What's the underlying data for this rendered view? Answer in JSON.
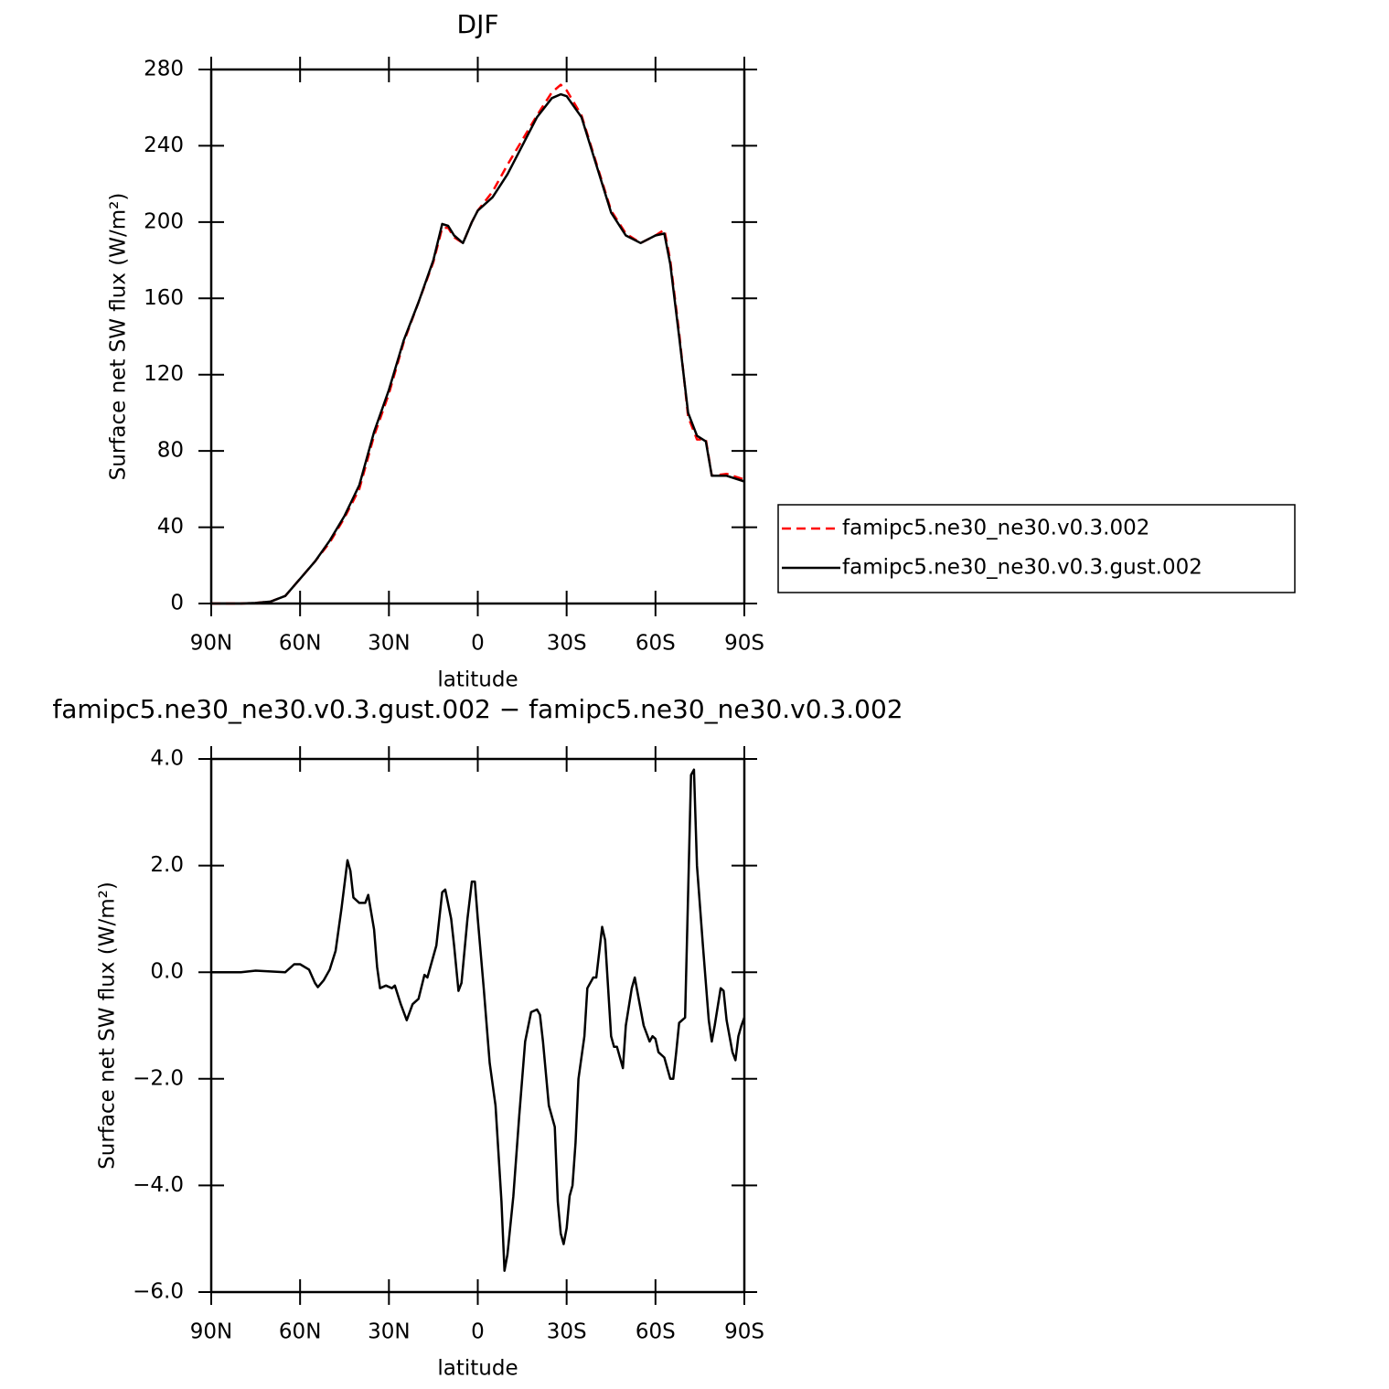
{
  "chart_data": [
    {
      "type": "line",
      "title": "DJF",
      "xlabel": "latitude",
      "ylabel": "Surface net SW flux (W/m²)",
      "x": [
        90,
        85,
        80,
        75,
        70,
        65,
        60,
        55,
        50,
        45,
        40,
        35,
        30,
        25,
        20,
        15,
        12,
        10,
        8,
        5,
        2,
        0,
        -5,
        -10,
        -15,
        -20,
        -25,
        -28,
        -30,
        -35,
        -40,
        -45,
        -50,
        -55,
        -60,
        -63,
        -65,
        -68,
        -71,
        -74,
        -77,
        -79,
        -84,
        -90
      ],
      "series": [
        {
          "name": "famipc5.ne30_ne30.v0.3.002",
          "color": "#ff0000",
          "dash": true,
          "values": [
            0,
            0,
            0,
            0.3,
            1,
            4,
            13,
            22,
            32,
            45,
            60,
            88,
            110,
            137,
            158,
            179,
            197,
            197,
            192,
            189,
            200,
            206,
            216,
            230,
            243,
            256,
            268,
            272,
            269,
            256,
            231,
            206,
            194,
            189,
            193,
            196,
            180,
            142,
            98,
            86,
            86,
            67,
            68,
            65
          ]
        },
        {
          "name": "famipc5.ne30_ne30.v0.3.gust.002",
          "color": "#000000",
          "dash": false,
          "values": [
            0,
            0,
            0,
            0.3,
            1,
            4,
            13,
            22,
            33,
            46,
            62,
            90,
            112,
            138,
            158,
            180,
            199,
            198,
            193,
            189,
            200,
            206,
            213,
            225,
            240,
            255,
            265,
            267,
            266,
            255,
            230,
            205,
            193,
            189,
            193,
            194,
            178,
            140,
            100,
            88,
            85,
            67,
            67,
            64
          ]
        }
      ],
      "xlim": [
        90,
        -90
      ],
      "xticks": [
        {
          "value": 90,
          "label": "90N"
        },
        {
          "value": 60,
          "label": "60N"
        },
        {
          "value": 30,
          "label": "30N"
        },
        0,
        {
          "value": -30,
          "label": "30S"
        },
        {
          "value": -60,
          "label": "60S"
        },
        {
          "value": -90,
          "label": "90S"
        }
      ],
      "ylim": [
        0,
        280
      ],
      "yticks": [
        0,
        40,
        80,
        120,
        160,
        200,
        240,
        280
      ],
      "legend": "right"
    },
    {
      "type": "line",
      "title": "famipc5.ne30_ne30.v0.3.gust.002 − famipc5.ne30_ne30.v0.3.002",
      "xlabel": "latitude",
      "ylabel": "Surface net SW flux (W/m²)",
      "x": [
        90,
        80,
        75,
        65,
        62,
        60,
        57,
        55,
        54,
        52,
        50,
        48,
        46,
        44,
        43,
        42,
        40,
        38,
        37,
        35,
        34,
        33,
        31,
        29,
        28,
        26,
        24,
        22,
        20,
        18,
        17,
        14,
        12,
        11,
        9,
        8,
        6.5,
        5.5,
        3.5,
        2,
        1,
        0,
        -2,
        -4,
        -6,
        -8,
        -9,
        -10,
        -12,
        -14,
        -16,
        -18,
        -20,
        -21,
        -22,
        -24,
        -26,
        -27,
        -28,
        -29,
        -30,
        -31,
        -32,
        -33,
        -34,
        -36,
        -37,
        -39,
        -40,
        -42,
        -43,
        -45,
        -46,
        -47,
        -49,
        -50,
        -52,
        -53,
        -54,
        -56,
        -58,
        -59,
        -60,
        -61,
        -63,
        -65,
        -66,
        -67,
        -68,
        -70,
        -72,
        -73,
        -74,
        -76,
        -78,
        -79,
        -80,
        -82,
        -83,
        -84,
        -86,
        -87,
        -88,
        -89,
        -90
      ],
      "values": [
        0,
        0,
        0.03,
        0,
        0.15,
        0.15,
        0.05,
        -0.2,
        -0.28,
        -0.15,
        0.05,
        0.4,
        1.2,
        2.1,
        1.9,
        1.4,
        1.3,
        1.3,
        1.45,
        0.8,
        0.1,
        -0.3,
        -0.25,
        -0.3,
        -0.25,
        -0.6,
        -0.9,
        -0.6,
        -0.5,
        -0.05,
        -0.1,
        0.5,
        1.5,
        1.55,
        1.0,
        0.5,
        -0.35,
        -0.2,
        1.0,
        1.7,
        1.7,
        1.0,
        -0.3,
        -1.7,
        -2.5,
        -4.3,
        -5.6,
        -5.3,
        -4.2,
        -2.7,
        -1.3,
        -0.75,
        -0.7,
        -0.8,
        -1.3,
        -2.5,
        -2.9,
        -4.3,
        -4.9,
        -5.1,
        -4.8,
        -4.2,
        -4.0,
        -3.2,
        -2.0,
        -1.2,
        -0.3,
        -0.1,
        -0.1,
        0.85,
        0.6,
        -1.2,
        -1.4,
        -1.4,
        -1.8,
        -1.0,
        -0.3,
        -0.1,
        -0.4,
        -1.0,
        -1.3,
        -1.2,
        -1.25,
        -1.5,
        -1.6,
        -2.0,
        -2.0,
        -1.5,
        -0.95,
        -0.85,
        3.7,
        3.8,
        2.0,
        0.5,
        -0.9,
        -1.3,
        -1.0,
        -0.3,
        -0.35,
        -0.9,
        -1.5,
        -1.65,
        -1.2,
        -1.0,
        -0.85
      ],
      "color": "#000000",
      "xlim": [
        90,
        -90
      ],
      "xticks": [
        {
          "value": 90,
          "label": "90N"
        },
        {
          "value": 60,
          "label": "60N"
        },
        {
          "value": 30,
          "label": "30N"
        },
        0,
        {
          "value": -30,
          "label": "30S"
        },
        {
          "value": -60,
          "label": "60S"
        },
        {
          "value": -90,
          "label": "90S"
        }
      ],
      "ylim": [
        -6,
        4
      ],
      "yticks": [
        {
          "value": -6,
          "label": "−6.0"
        },
        {
          "value": -4,
          "label": "−4.0"
        },
        {
          "value": -2,
          "label": "−2.0"
        },
        {
          "value": 0,
          "label": "0.0"
        },
        {
          "value": 2,
          "label": "2.0"
        },
        {
          "value": 4,
          "label": "4.0"
        }
      ]
    }
  ]
}
